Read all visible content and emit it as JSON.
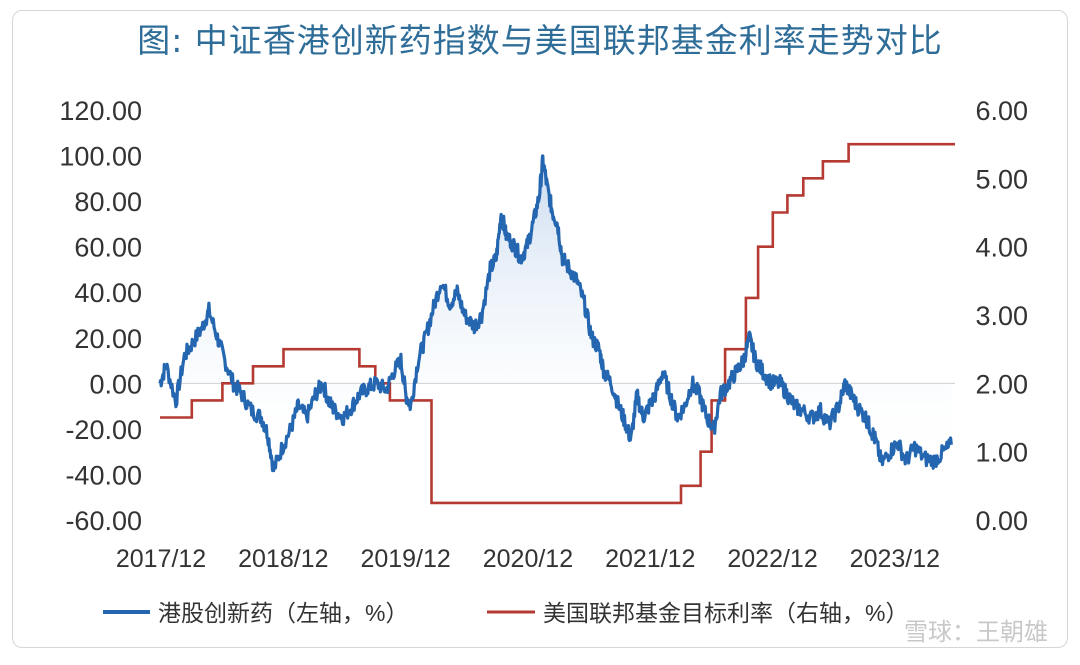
{
  "title": "图: 中证香港创新药指数与美国联邦基金利率走势对比",
  "watermark": "雪球：王朝雄",
  "colors": {
    "series1": "#2466b0",
    "series2": "#b43a32",
    "fill_top": "#c7d9ef",
    "zero_line": "#cccccc",
    "title": "#2f6d99"
  },
  "chart_data": {
    "type": "line",
    "x_tick_labels": [
      "2017/12",
      "2018/12",
      "2019/12",
      "2020/12",
      "2021/12",
      "2022/12",
      "2023/12"
    ],
    "y_left_ticks": [
      "120.00",
      "100.00",
      "80.00",
      "60.00",
      "40.00",
      "20.00",
      "0.00",
      "-20.00",
      "-40.00",
      "-60.00"
    ],
    "y_right_ticks": [
      "6.00",
      "5.00",
      "4.00",
      "3.00",
      "2.00",
      "1.00",
      "0.00"
    ],
    "y_left_range": [
      -60,
      120
    ],
    "y_right_range": [
      0,
      6
    ],
    "x_range": [
      2017.95,
      2024.45
    ],
    "zero_line": true,
    "legend_position": "bottom",
    "series": [
      {
        "name": "港股创新药（左轴，%）",
        "axis": "left",
        "points": [
          [
            2017.95,
            0
          ],
          [
            2018.0,
            8
          ],
          [
            2018.08,
            -8
          ],
          [
            2018.15,
            12
          ],
          [
            2018.22,
            18
          ],
          [
            2018.3,
            25
          ],
          [
            2018.35,
            32
          ],
          [
            2018.42,
            20
          ],
          [
            2018.48,
            10
          ],
          [
            2018.55,
            0
          ],
          [
            2018.62,
            -5
          ],
          [
            2018.7,
            -12
          ],
          [
            2018.78,
            -15
          ],
          [
            2018.83,
            -22
          ],
          [
            2018.88,
            -38
          ],
          [
            2018.95,
            -28
          ],
          [
            2019.02,
            -20
          ],
          [
            2019.08,
            -10
          ],
          [
            2019.15,
            -15
          ],
          [
            2019.22,
            -5
          ],
          [
            2019.28,
            0
          ],
          [
            2019.33,
            -8
          ],
          [
            2019.38,
            -12
          ],
          [
            2019.45,
            -15
          ],
          [
            2019.52,
            -10
          ],
          [
            2019.58,
            -5
          ],
          [
            2019.65,
            -2
          ],
          [
            2019.72,
            0
          ],
          [
            2019.8,
            -3
          ],
          [
            2019.86,
            5
          ],
          [
            2019.92,
            10
          ],
          [
            2019.96,
            -5
          ],
          [
            2020.0,
            -10
          ],
          [
            2020.06,
            10
          ],
          [
            2020.12,
            20
          ],
          [
            2020.18,
            32
          ],
          [
            2020.25,
            45
          ],
          [
            2020.32,
            35
          ],
          [
            2020.38,
            40
          ],
          [
            2020.44,
            30
          ],
          [
            2020.52,
            25
          ],
          [
            2020.58,
            30
          ],
          [
            2020.65,
            50
          ],
          [
            2020.7,
            55
          ],
          [
            2020.74,
            75
          ],
          [
            2020.78,
            65
          ],
          [
            2020.85,
            60
          ],
          [
            2020.9,
            55
          ],
          [
            2020.95,
            60
          ],
          [
            2021.0,
            70
          ],
          [
            2021.05,
            82
          ],
          [
            2021.08,
            98
          ],
          [
            2021.12,
            85
          ],
          [
            2021.16,
            75
          ],
          [
            2021.2,
            70
          ],
          [
            2021.24,
            55
          ],
          [
            2021.3,
            50
          ],
          [
            2021.36,
            45
          ],
          [
            2021.42,
            35
          ],
          [
            2021.48,
            20
          ],
          [
            2021.54,
            15
          ],
          [
            2021.58,
            5
          ],
          [
            2021.64,
            0
          ],
          [
            2021.7,
            -10
          ],
          [
            2021.76,
            -18
          ],
          [
            2021.8,
            -25
          ],
          [
            2021.85,
            -5
          ],
          [
            2021.9,
            -15
          ],
          [
            2021.95,
            -10
          ],
          [
            2022.0,
            -5
          ],
          [
            2022.06,
            5
          ],
          [
            2022.12,
            -5
          ],
          [
            2022.18,
            -15
          ],
          [
            2022.24,
            -10
          ],
          [
            2022.3,
            0
          ],
          [
            2022.36,
            -5
          ],
          [
            2022.42,
            -15
          ],
          [
            2022.48,
            -20
          ],
          [
            2022.53,
            -5
          ],
          [
            2022.6,
            0
          ],
          [
            2022.66,
            5
          ],
          [
            2022.72,
            10
          ],
          [
            2022.77,
            20
          ],
          [
            2022.82,
            10
          ],
          [
            2022.88,
            5
          ],
          [
            2022.95,
            0
          ],
          [
            2023.02,
            0
          ],
          [
            2023.08,
            -5
          ],
          [
            2023.14,
            -10
          ],
          [
            2023.2,
            -12
          ],
          [
            2023.28,
            -15
          ],
          [
            2023.35,
            -12
          ],
          [
            2023.42,
            -18
          ],
          [
            2023.5,
            -10
          ],
          [
            2023.55,
            0
          ],
          [
            2023.6,
            -5
          ],
          [
            2023.65,
            -10
          ],
          [
            2023.72,
            -15
          ],
          [
            2023.76,
            -20
          ],
          [
            2023.8,
            -25
          ],
          [
            2023.85,
            -35
          ],
          [
            2023.92,
            -30
          ],
          [
            2023.98,
            -26
          ],
          [
            2024.05,
            -34
          ],
          [
            2024.12,
            -28
          ],
          [
            2024.2,
            -33
          ],
          [
            2024.28,
            -34
          ],
          [
            2024.36,
            -30
          ],
          [
            2024.42,
            -27
          ]
        ]
      },
      {
        "name": "美国联邦基金目标利率（右轴，%）",
        "axis": "right",
        "steps": [
          [
            2017.95,
            1.5
          ],
          [
            2018.21,
            1.75
          ],
          [
            2018.46,
            2.0
          ],
          [
            2018.71,
            2.25
          ],
          [
            2018.96,
            2.5
          ],
          [
            2019.58,
            2.25
          ],
          [
            2019.71,
            2.0
          ],
          [
            2019.83,
            1.75
          ],
          [
            2020.17,
            0.25
          ],
          [
            2022.21,
            0.5
          ],
          [
            2022.37,
            1.0
          ],
          [
            2022.46,
            1.75
          ],
          [
            2022.57,
            2.5
          ],
          [
            2022.74,
            3.25
          ],
          [
            2022.84,
            4.0
          ],
          [
            2022.96,
            4.5
          ],
          [
            2023.08,
            4.75
          ],
          [
            2023.21,
            5.0
          ],
          [
            2023.37,
            5.25
          ],
          [
            2023.58,
            5.5
          ],
          [
            2024.45,
            5.5
          ]
        ]
      }
    ]
  }
}
